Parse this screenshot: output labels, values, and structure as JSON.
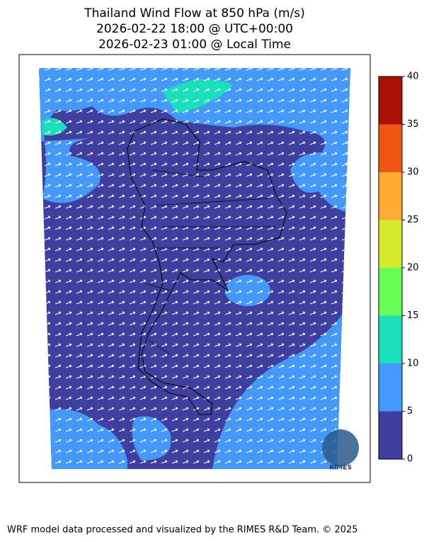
{
  "title": [
    "Thailand Wind Flow at 850 hPa (m/s)",
    "2026-02-22 18:00 @ UTC+00:00",
    "2026-02-23 01:00 @ Local Time"
  ],
  "colorbar": {
    "ticks": [
      0,
      5,
      10,
      15,
      20,
      25,
      30,
      35,
      40
    ],
    "colors": [
      "#3f3fa0",
      "#4499ff",
      "#1adfbb",
      "#66ff55",
      "#d4ea2a",
      "#ffaa33",
      "#ee5511",
      "#aa1100"
    ]
  },
  "logo": "RIMES",
  "footer": "WRF model data processed and visualized by the RIMES R&D Team. © 2025"
}
